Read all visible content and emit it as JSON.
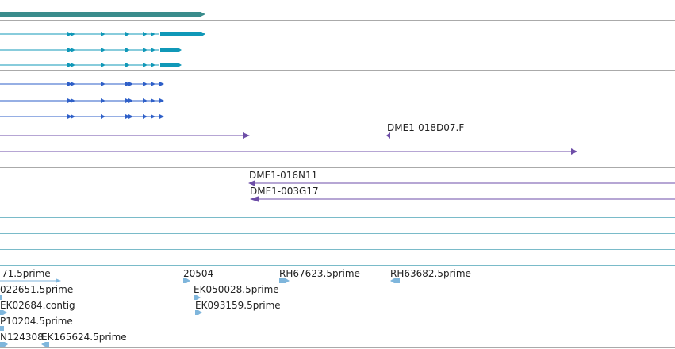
{
  "colors": {
    "gene": "#3A8C8C",
    "transcript_a": "#1098B8",
    "transcript_b": "#2E5FC8",
    "clone": "#6E4EA8",
    "est": "#7FB6DC",
    "track_divider": "#AAAAAA",
    "row_divider": "#7ABBC9",
    "label_text": "#222222"
  },
  "clone_labels": [
    "DME1-018D07.F",
    "DME1-016N11",
    "DME1-003G17"
  ],
  "est_labels": [
    "71.5prime",
    "20504",
    "RH67623.5prime",
    "RH63682.5prime",
    "022651.5prime",
    "EK050028.5prime",
    "EK02684.contig",
    "EK093159.5prime",
    "P10204.5prime",
    "N124308",
    "EK165624.5prime"
  ]
}
